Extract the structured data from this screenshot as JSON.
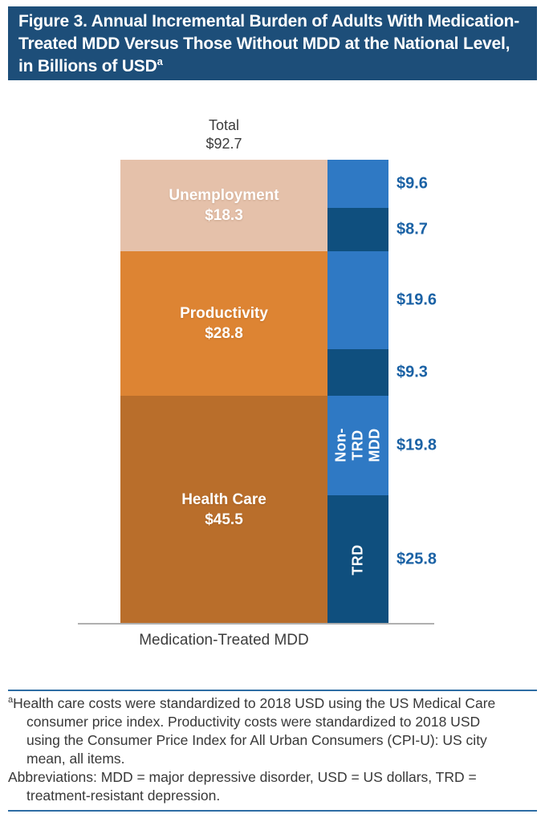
{
  "header": {
    "title": "Figure 3. Annual Incremental Burden of Adults With Medication-Treated MDD Versus Those Without MDD at the National Level, in Billions of USD",
    "title_superscript": "a",
    "background_color": "#1d4e79"
  },
  "chart_data": {
    "type": "bar",
    "subtype": "stacked-composition",
    "unit": "Billions of USD",
    "grid": false,
    "ylim": [
      0,
      92.7
    ],
    "x_category": "Medication-Treated MDD",
    "total": {
      "label": "Total",
      "value": 92.7,
      "display": "$92.7"
    },
    "cost_stack_top_to_bottom": [
      {
        "category": "Unemployment",
        "value": 18.3,
        "display": "$18.3",
        "color": "#e5c1aa"
      },
      {
        "category": "Productivity",
        "value": 28.8,
        "display": "$28.8",
        "color": "#dd8433"
      },
      {
        "category": "Health Care",
        "value": 45.5,
        "display": "$45.5",
        "color": "#b96e2b"
      }
    ],
    "trd_split_top_to_bottom": [
      {
        "category": "Unemployment",
        "group": "Non-TRD MDD",
        "value": 9.6,
        "display": "$9.6",
        "color": "#2f79c4",
        "inner_label": ""
      },
      {
        "category": "Unemployment",
        "group": "TRD",
        "value": 8.7,
        "display": "$8.7",
        "color": "#0f4f7e",
        "inner_label": ""
      },
      {
        "category": "Productivity",
        "group": "Non-TRD MDD",
        "value": 19.6,
        "display": "$19.6",
        "color": "#2f79c4",
        "inner_label": ""
      },
      {
        "category": "Productivity",
        "group": "TRD",
        "value": 9.3,
        "display": "$9.3",
        "color": "#0f4f7e",
        "inner_label": ""
      },
      {
        "category": "Health Care",
        "group": "Non-TRD MDD",
        "value": 19.8,
        "display": "$19.8",
        "color": "#2f79c4",
        "inner_label": "Non-TRD\nMDD"
      },
      {
        "category": "Health Care",
        "group": "TRD",
        "value": 25.8,
        "display": "$25.8",
        "color": "#0f4f7e",
        "inner_label": "TRD"
      }
    ],
    "value_label_color": "#1b62a5",
    "colors": {
      "medium_blue": "#2f79c4",
      "dark_blue": "#0f4f7e",
      "light_tan": "#e5c1aa",
      "orange": "#dd8433",
      "dark_orange": "#b96e2b"
    }
  },
  "footnote": {
    "note_superscript": "a",
    "note_text": "Health care costs were standardized to 2018 USD using the US Medical Care consumer price index. Productivity costs were standardized to 2018 USD using the Consumer Price Index for All Urban Consumers (CPI-U): US city mean, all items.",
    "abbreviations_text": "Abbreviations: MDD = major depressive disorder, USD = US dollars, TRD = treatment-resistant depression.",
    "rule_color": "#2e6da4"
  }
}
